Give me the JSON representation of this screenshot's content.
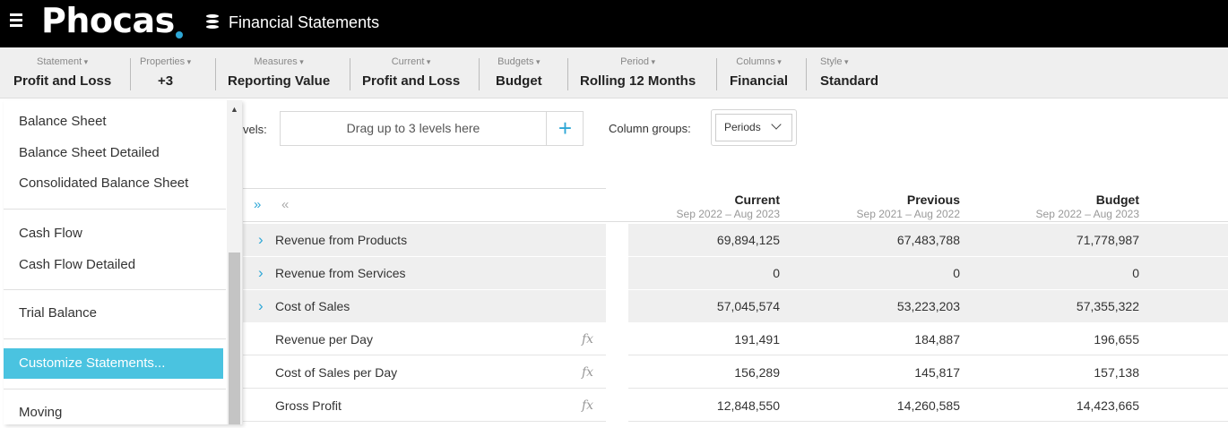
{
  "header": {
    "logo_text": "Phocas",
    "app_title": "Financial Statements",
    "accent": "#2ea7d6"
  },
  "toolbar": {
    "statement": {
      "caption": "Statement",
      "value": "Profit and Loss"
    },
    "properties": {
      "caption": "Properties",
      "value": "+3"
    },
    "measures": {
      "caption": "Measures",
      "value": "Reporting Value"
    },
    "current": {
      "caption": "Current",
      "value": "Profit and Loss"
    },
    "budgets": {
      "caption": "Budgets",
      "value": "Budget"
    },
    "period": {
      "caption": "Period",
      "value": "Rolling 12 Months"
    },
    "columns": {
      "caption": "Columns",
      "value": "Financial"
    },
    "style": {
      "caption": "Style",
      "value": "Standard"
    }
  },
  "menu": {
    "items": [
      {
        "label": "Balance Sheet"
      },
      {
        "label": "Balance Sheet Detailed"
      },
      {
        "label": "Consolidated Balance Sheet"
      },
      {
        "label": "Cash Flow"
      },
      {
        "label": "Cash Flow Detailed"
      },
      {
        "label": "Trial Balance"
      },
      {
        "label": "Customize Statements..."
      },
      {
        "label": "Moving"
      }
    ],
    "active_color": "#4ac3e0"
  },
  "controls": {
    "levels_label": "vels:",
    "drag_placeholder": "Drag up to 3 levels here",
    "add_icon": "+",
    "column_groups_label": "Column groups:",
    "periods_value": "Periods"
  },
  "table": {
    "columns": [
      {
        "title": "Current",
        "range": "Sep 2022 – Aug 2023"
      },
      {
        "title": "Previous",
        "range": "Sep 2021 – Aug 2022"
      },
      {
        "title": "Budget",
        "range": "Sep 2022 – Aug 2023"
      }
    ],
    "rows": [
      {
        "label": "Revenue from Products",
        "values": [
          "69,894,125",
          "67,483,788",
          "71,778,987"
        ]
      },
      {
        "label": "Revenue from Services",
        "values": [
          "0",
          "0",
          "0"
        ]
      },
      {
        "label": "Cost of Sales",
        "values": [
          "57,045,574",
          "53,223,203",
          "57,355,322"
        ]
      },
      {
        "label": "Revenue per Day",
        "values": [
          "191,491",
          "184,887",
          "196,655"
        ],
        "fx": "fx"
      },
      {
        "label": "Cost of Sales per Day",
        "values": [
          "156,289",
          "145,817",
          "157,138"
        ],
        "fx": "fx"
      },
      {
        "label": "Gross Profit",
        "values": [
          "12,848,550",
          "14,260,585",
          "14,423,665"
        ],
        "fx": "fx"
      }
    ]
  }
}
